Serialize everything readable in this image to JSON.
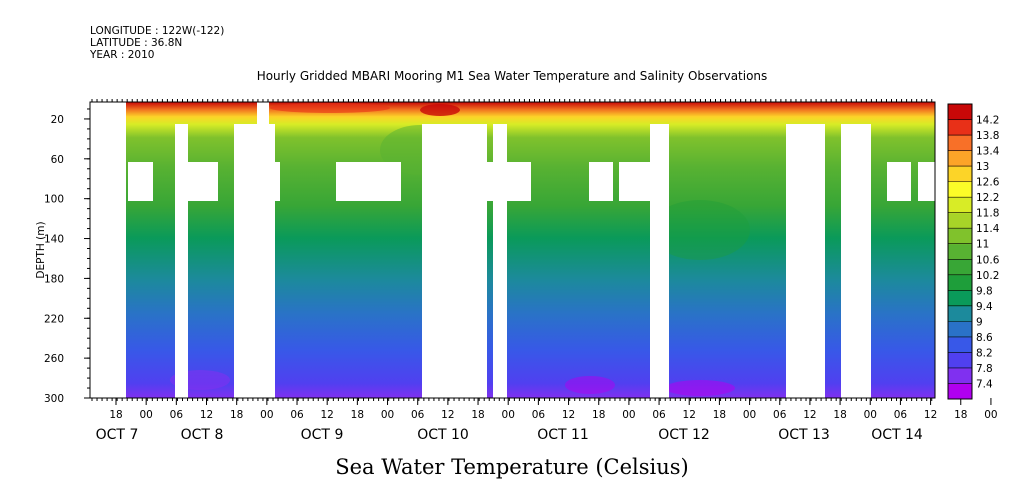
{
  "header": {
    "longitude": "LONGITUDE : 122W(-122)",
    "latitude": "LATITUDE : 36.8N",
    "year": "YEAR : 2010"
  },
  "title": "Hourly Gridded MBARI Mooring M1 Sea Water Temperature and Salinity Observations",
  "footer": "Sea Water Temperature (Celsius)",
  "chart_data": {
    "type": "heatmap",
    "title": "Hourly Gridded MBARI Mooring M1 Sea Water Temperature and Salinity Observations",
    "xlabel": "",
    "ylabel": "DEPTH (m)",
    "x_hour_ticks": [
      "18",
      "00",
      "06",
      "12",
      "18",
      "00",
      "06",
      "12",
      "18",
      "00",
      "06",
      "12",
      "18",
      "00",
      "06",
      "12",
      "18",
      "00",
      "06",
      "12",
      "18",
      "00",
      "06",
      "12",
      "18",
      "00",
      "06",
      "12",
      "18",
      "00",
      "06",
      "12"
    ],
    "x_day_labels": [
      "OCT  7",
      "OCT  8",
      "OCT  9",
      "OCT 10",
      "OCT 11",
      "OCT 12",
      "OCT 13",
      "OCT 14"
    ],
    "y_ticks": [
      20,
      60,
      100,
      140,
      180,
      220,
      260,
      300
    ],
    "ylim": [
      300,
      3
    ],
    "colorbar": {
      "label": "Sea Water Temperature (Celsius)",
      "levels": [
        7.4,
        7.8,
        8.2,
        8.6,
        9,
        9.4,
        9.8,
        10.2,
        10.6,
        11,
        11.4,
        11.8,
        12.2,
        12.6,
        13,
        13.4,
        13.8,
        14.2
      ],
      "colors": [
        "#b000f0",
        "#8030f0",
        "#5040f0",
        "#3858e8",
        "#2a72c8",
        "#1c8a9c",
        "#0a9a5a",
        "#1e9e3a",
        "#38a636",
        "#58b232",
        "#80c22c",
        "#a8d428",
        "#d8ec26",
        "#fcfc28",
        "#fcd428",
        "#fca428",
        "#f87028",
        "#e83018",
        "#c80808"
      ]
    },
    "approx_profile": [
      {
        "depth": 5,
        "temperature": 13.6
      },
      {
        "depth": 20,
        "temperature": 12.2
      },
      {
        "depth": 40,
        "temperature": 11.0
      },
      {
        "depth": 60,
        "temperature": 10.6
      },
      {
        "depth": 100,
        "temperature": 10.1
      },
      {
        "depth": 140,
        "temperature": 9.7
      },
      {
        "depth": 180,
        "temperature": 9.3
      },
      {
        "depth": 220,
        "temperature": 8.9
      },
      {
        "depth": 260,
        "temperature": 8.5
      },
      {
        "depth": 300,
        "temperature": 8.0
      }
    ],
    "missing_data": "white gaps where no observations",
    "grid": false
  }
}
